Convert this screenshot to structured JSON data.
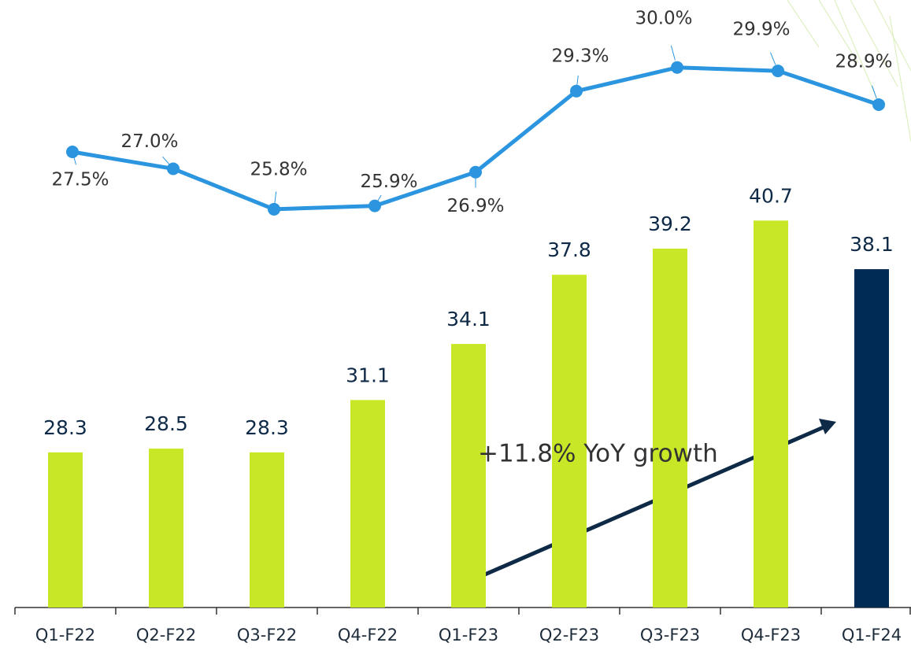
{
  "chart_data": {
    "type": "bar-line",
    "categories": [
      "Q1-F22",
      "Q2-F22",
      "Q3-F22",
      "Q4-F22",
      "Q1-F23",
      "Q2-F23",
      "Q3-F23",
      "Q4-F23",
      "Q1-F24"
    ],
    "series": [
      {
        "type": "bar",
        "colors": [
          "#c8e827",
          "#c8e827",
          "#c8e827",
          "#c8e827",
          "#c8e827",
          "#c8e827",
          "#c8e827",
          "#c8e827",
          "#002b55"
        ],
        "values": [
          28.3,
          28.5,
          28.3,
          31.1,
          34.1,
          37.8,
          39.2,
          40.7,
          38.1
        ]
      },
      {
        "type": "line",
        "axis": "y2",
        "color": "#2b95df",
        "values": [
          27.5,
          27.0,
          25.8,
          25.9,
          26.9,
          29.3,
          30.0,
          29.9,
          28.9
        ],
        "value_labels": [
          "27.5%",
          "27.0%",
          "25.8%",
          "25.9%",
          "26.9%",
          "29.3%",
          "30.0%",
          "29.9%",
          "28.9%"
        ]
      }
    ],
    "ylim": [
      20,
      52.5
    ],
    "y2lim": [
      14,
      32
    ],
    "annotation": "+11.8% YoY growth"
  }
}
